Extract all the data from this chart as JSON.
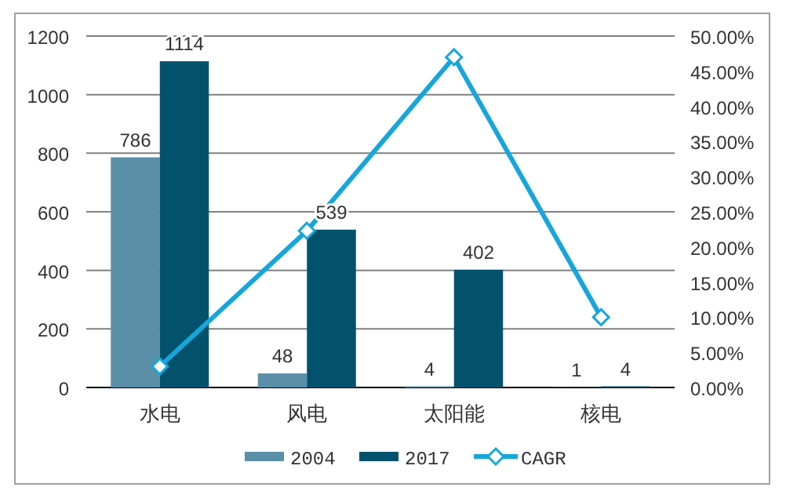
{
  "chart_data": {
    "type": "bar",
    "categories": [
      "水电",
      "风电",
      "太阳能",
      "核电"
    ],
    "series": [
      {
        "name": "2004",
        "color": "#5b8fa8",
        "values": [
          786,
          48,
          4,
          1
        ],
        "value_labels": [
          "786",
          "48",
          "4",
          "1"
        ]
      },
      {
        "name": "2017",
        "color": "#02526e",
        "values": [
          1114,
          539,
          402,
          4
        ],
        "value_labels": [
          "1114",
          "539",
          "402",
          "4"
        ]
      },
      {
        "name": "CAGR",
        "type": "line",
        "axis": "y2",
        "color": "#16a6db",
        "values": [
          3,
          22.3,
          47,
          10
        ]
      }
    ],
    "marker": "diamond",
    "ylim": [
      0,
      1200
    ],
    "yticks": [
      0,
      200,
      400,
      600,
      800,
      1000,
      1200
    ],
    "y2lim": [
      0,
      50
    ],
    "y2ticks": [
      {
        "value": 0,
        "label": "0.00%"
      },
      {
        "value": 5,
        "label": "5.00%"
      },
      {
        "value": 10,
        "label": "10.00%"
      },
      {
        "value": 15,
        "label": "15.00%"
      },
      {
        "value": 20,
        "label": "20.00%"
      },
      {
        "value": 25,
        "label": "25.00%"
      },
      {
        "value": 30,
        "label": "30.00%"
      },
      {
        "value": 35,
        "label": "35.00%"
      },
      {
        "value": 40,
        "label": "40.00%"
      },
      {
        "value": 45,
        "label": "45.00%"
      },
      {
        "value": 50,
        "label": "50.00%"
      }
    ],
    "grid": "y",
    "legend": "bottom"
  }
}
